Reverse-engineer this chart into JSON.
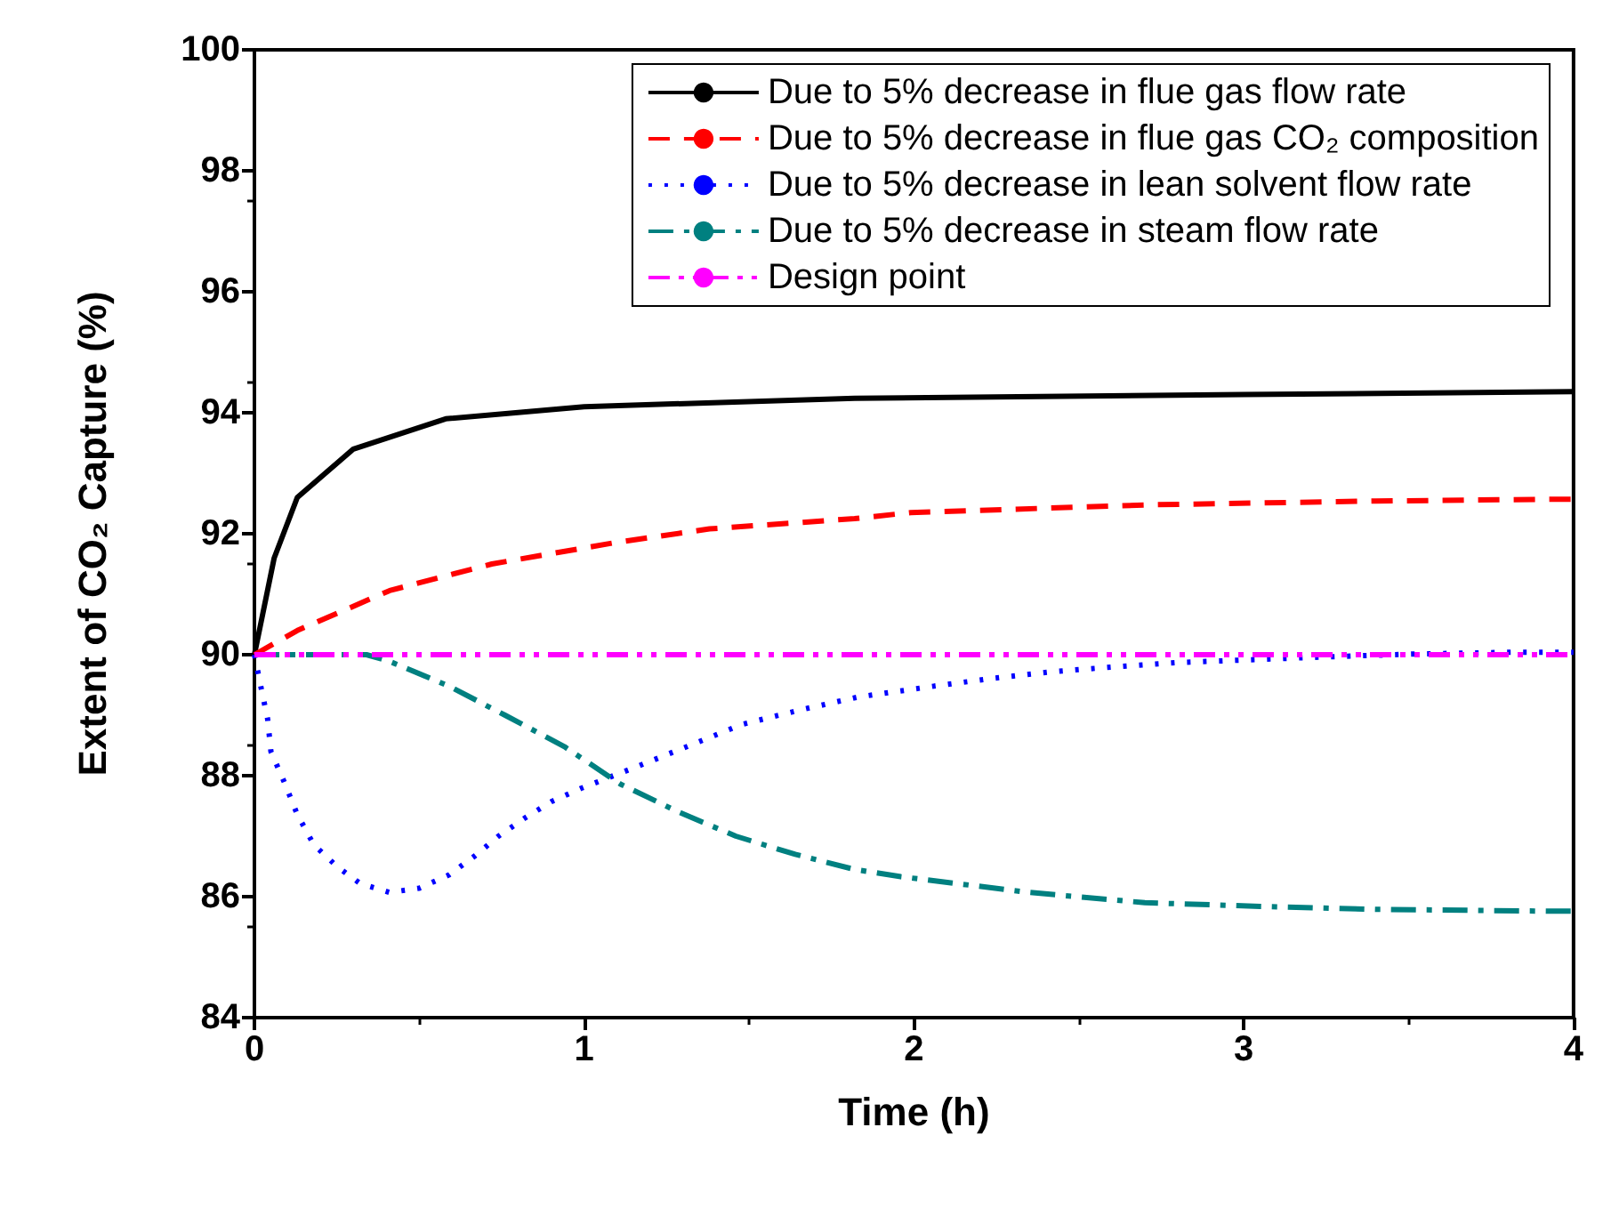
{
  "chart_data": {
    "type": "line",
    "xlabel": "Time (h)",
    "ylabel": "Extent of CO₂ Capture (%)",
    "xlim": [
      0,
      4
    ],
    "xticks": [
      0,
      1,
      2,
      3,
      4
    ],
    "ylim": [
      84,
      100
    ],
    "yticks": [
      84,
      86,
      88,
      90,
      92,
      94,
      96,
      98,
      100
    ],
    "grid": false,
    "legend": "top right",
    "marker": "none",
    "series": [
      {
        "name": "Due to 5% decrease in flue gas flow rate",
        "color": "#000000",
        "line_style": "solid",
        "x": [
          0,
          0.06,
          0.13,
          0.3,
          0.58,
          1.0,
          1.82,
          3.0,
          4.0
        ],
        "values": [
          90,
          91.6,
          92.6,
          93.4,
          93.9,
          94.1,
          94.24,
          94.3,
          94.35
        ]
      },
      {
        "name": "Due to 5% decrease in flue gas CO₂ composition",
        "color": "#ff0000",
        "line_style": "dashed",
        "x": [
          0,
          0.13,
          0.41,
          0.72,
          1.09,
          1.38,
          1.82,
          1.99,
          2.73,
          3.4,
          3.93,
          4.0
        ],
        "values": [
          90,
          90.4,
          91.06,
          91.5,
          91.85,
          92.08,
          92.25,
          92.35,
          92.48,
          92.54,
          92.57,
          92.57
        ]
      },
      {
        "name": "Due to 5% decrease in lean solvent flow rate",
        "color": "#0000ff",
        "line_style": "dotted",
        "x": [
          0,
          0.02,
          0.04,
          0.05,
          0.09,
          0.13,
          0.18,
          0.25,
          0.32,
          0.41,
          0.5,
          0.59,
          0.67,
          0.74,
          0.82,
          0.9,
          0.99,
          1.16,
          1.32,
          1.48,
          1.65,
          1.83,
          2.06,
          2.24,
          2.42,
          2.61,
          2.8,
          2.99,
          3.23,
          3.51,
          3.81,
          4.0
        ],
        "values": [
          90,
          89.46,
          88.94,
          88.4,
          87.9,
          87.36,
          86.86,
          86.5,
          86.22,
          86.07,
          86.14,
          86.36,
          86.68,
          87.0,
          87.3,
          87.57,
          87.79,
          88.15,
          88.5,
          88.85,
          89.08,
          89.3,
          89.48,
          89.61,
          89.72,
          89.8,
          89.87,
          89.91,
          89.96,
          90.01,
          90.04,
          90.04
        ]
      },
      {
        "name": "Due to 5% decrease in steam flow rate",
        "color": "#008080",
        "line_style": "dashdot",
        "x": [
          0,
          0.34,
          0.41,
          0.59,
          0.76,
          0.94,
          1.11,
          1.29,
          1.46,
          1.64,
          1.82,
          1.96,
          2.35,
          2.7,
          3.05,
          3.4,
          3.93,
          4.0
        ],
        "values": [
          90,
          90,
          89.89,
          89.48,
          89.0,
          88.48,
          87.86,
          87.39,
          87.0,
          86.7,
          86.45,
          86.33,
          86.07,
          85.9,
          85.84,
          85.79,
          85.76,
          85.76
        ]
      },
      {
        "name": "Design point",
        "color": "#ff00ff",
        "line_style": "dashdotdot",
        "x": [
          0,
          4
        ],
        "values": [
          90,
          90
        ]
      }
    ]
  }
}
